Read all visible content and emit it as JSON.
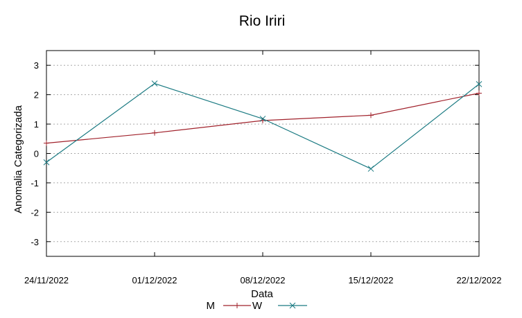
{
  "chart_data": {
    "type": "line",
    "title": "Rio Iriri",
    "xlabel": "Data",
    "ylabel": "Anomalia Categorizada",
    "categories": [
      "24/11/2022",
      "01/12/2022",
      "08/12/2022",
      "15/12/2022",
      "22/12/2022"
    ],
    "yticks": [
      "3",
      "2",
      "1",
      "0",
      "-1",
      "-2",
      "-3"
    ],
    "ylim": [
      -3.5,
      3.5
    ],
    "grid": true,
    "legend_position": "bottom-center",
    "series": [
      {
        "name": "M",
        "values": [
          0.35,
          0.7,
          1.12,
          1.3,
          2.05
        ],
        "color": "#a0202a",
        "marker": "plus"
      },
      {
        "name": "W",
        "values": [
          -0.3,
          2.38,
          1.18,
          -0.52,
          2.36
        ],
        "color": "#1a7a82",
        "marker": "cross"
      }
    ]
  }
}
